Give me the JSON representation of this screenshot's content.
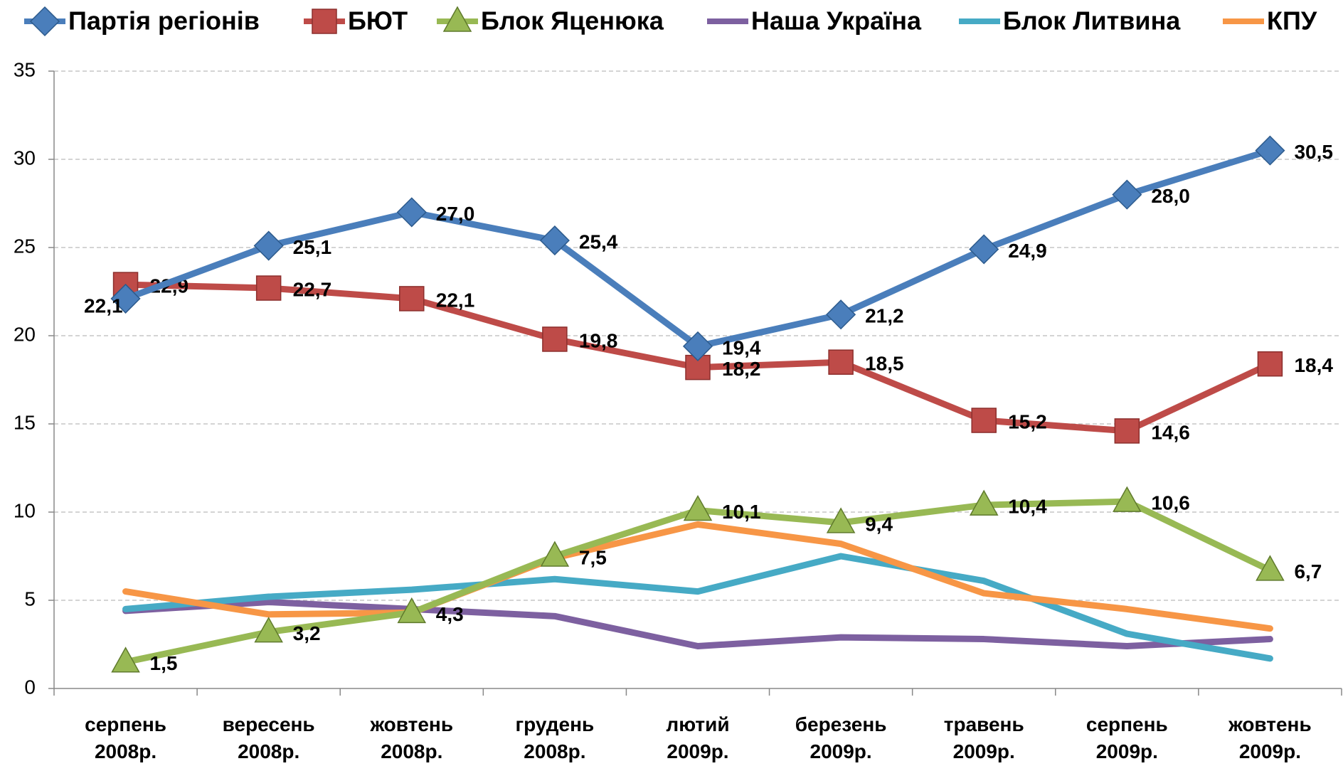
{
  "chart_data": {
    "type": "line",
    "categories": [
      "серпень 2008р.",
      "вересень 2008р.",
      "жовтень 2008р.",
      "грудень 2008р.",
      "лютий 2009р.",
      "березень 2009р.",
      "травень 2009р.",
      "серпень 2009р.",
      "жовтень 2009р."
    ],
    "series": [
      {
        "name": "Партія регіонів",
        "color": "#4a7ebb",
        "marker": "diamond",
        "values": [
          22.1,
          25.1,
          27.0,
          25.4,
          19.4,
          21.2,
          24.9,
          28.0,
          30.5
        ],
        "value_labels": [
          "22,1",
          "25,1",
          "27,0",
          "25,4",
          "19,4",
          "21,2",
          "24,9",
          "28,0",
          "30,5"
        ]
      },
      {
        "name": "БЮТ",
        "color": "#be4b48",
        "marker": "square",
        "values": [
          22.9,
          22.7,
          22.1,
          19.8,
          18.2,
          18.5,
          15.2,
          14.6,
          18.4
        ],
        "value_labels": [
          "22,9",
          "22,7",
          "22,1",
          "19,8",
          "18,2",
          "18,5",
          "15,2",
          "14,6",
          "18,4"
        ]
      },
      {
        "name": "Блок Яценюка",
        "color": "#98b954",
        "marker": "triangle",
        "values": [
          1.5,
          3.2,
          4.3,
          7.5,
          10.1,
          9.4,
          10.4,
          10.6,
          6.7
        ],
        "value_labels": [
          "1,5",
          "3,2",
          "4,3",
          "7,5",
          "10,1",
          "9,4",
          "10,4",
          "10,6",
          "6,7"
        ]
      },
      {
        "name": "Наша Україна",
        "color": "#7d60a0",
        "values": [
          4.4,
          4.9,
          4.5,
          4.1,
          2.4,
          2.9,
          2.8,
          2.4,
          2.8
        ]
      },
      {
        "name": "Блок Литвина",
        "color": "#46aac5",
        "values": [
          4.5,
          5.2,
          5.6,
          6.2,
          5.5,
          7.5,
          6.1,
          3.1,
          1.7
        ]
      },
      {
        "name": "КПУ",
        "color": "#f79646",
        "values": [
          5.5,
          4.2,
          4.3,
          7.4,
          9.3,
          8.2,
          5.4,
          4.5,
          3.4
        ]
      }
    ],
    "ylim": [
      0,
      35
    ],
    "yticks": [
      0,
      5,
      10,
      15,
      20,
      25,
      30,
      35
    ],
    "grid": true,
    "legend": "top"
  }
}
